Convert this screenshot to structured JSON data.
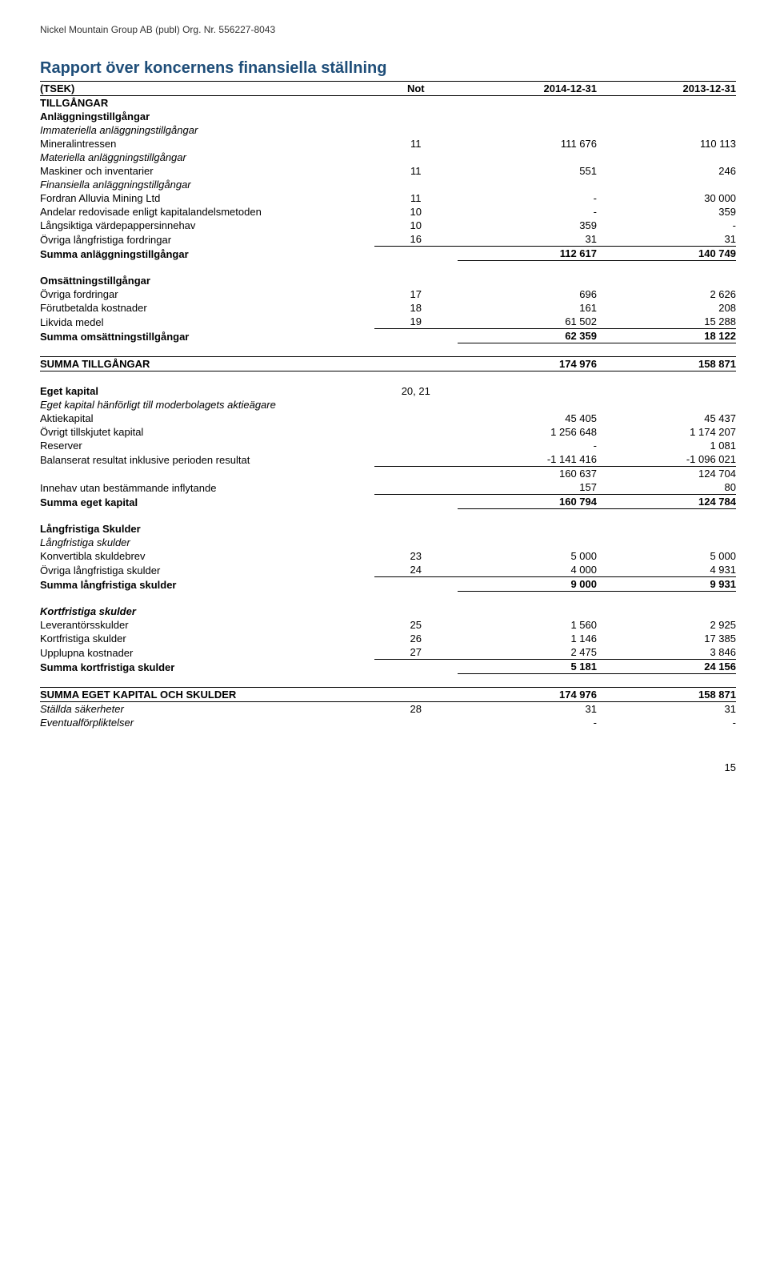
{
  "header": "Nickel Mountain Group AB (publ) Org. Nr. 556227-8043",
  "title": "Rapport över koncernens finansiella ställning",
  "columns": {
    "tsek": "(TSEK)",
    "not": "Not",
    "c1": "2014-12-31",
    "c2": "2013-12-31"
  },
  "sections": {
    "tillgangar_head": "TILLGÅNGAR",
    "anlaggning_head": "Anläggningstillgångar",
    "immateriella_head": "Immateriella anläggningstillgångar",
    "rows1": [
      {
        "label": "Mineralintressen",
        "not": "11",
        "v1": "111 676",
        "v2": "110 113"
      }
    ],
    "materiella_head": "Materiella anläggningstillgångar",
    "rows2": [
      {
        "label": "Maskiner och inventarier",
        "not": "11",
        "v1": "551",
        "v2": "246"
      }
    ],
    "finansiella_head": "Finansiella anläggningstillgångar",
    "rows3": [
      {
        "label": "Fordran Alluvia Mining Ltd",
        "not": "11",
        "v1": "-",
        "v2": "30 000"
      },
      {
        "label": "Andelar redovisade enligt kapitalandelsmetoden",
        "not": "10",
        "v1": "-",
        "v2": "359"
      },
      {
        "label": "Långsiktiga värdepappersinnehav",
        "not": "10",
        "v1": "359",
        "v2": "-"
      },
      {
        "label": "Övriga långfristiga fordringar",
        "not": "16",
        "v1": "31",
        "v2": "31"
      }
    ],
    "sum_anlaggning": {
      "label": "Summa anläggningstillgångar",
      "v1": "112 617",
      "v2": "140 749"
    },
    "omsattning_head": "Omsättningstillgångar",
    "rows4": [
      {
        "label": "Övriga fordringar",
        "not": "17",
        "v1": "696",
        "v2": "2 626"
      },
      {
        "label": "Förutbetalda kostnader",
        "not": "18",
        "v1": "161",
        "v2": "208"
      },
      {
        "label": "Likvida medel",
        "not": "19",
        "v1": "61 502",
        "v2": "15 288"
      }
    ],
    "sum_omsattning": {
      "label": "Summa omsättningstillgångar",
      "v1": "62 359",
      "v2": "18 122"
    },
    "sum_tillgangar": {
      "label": "SUMMA TILLGÅNGAR",
      "v1": "174 976",
      "v2": "158 871"
    },
    "eget_kapital_head": {
      "label": "Eget kapital",
      "not": "20, 21"
    },
    "eget_hanforligt": "Eget kapital hänförligt till moderbolagets aktieägare",
    "rows5": [
      {
        "label": "Aktiekapital",
        "v1": "45 405",
        "v2": "45 437"
      },
      {
        "label": "Övrigt tillskjutet kapital",
        "v1": "1 256 648",
        "v2": "1 174 207"
      },
      {
        "label": "Reserver",
        "v1": "-",
        "v2": "1 081"
      },
      {
        "label": "Balanserat resultat inklusive perioden resultat",
        "v1": "-1 141 416",
        "v2": "-1 096 021"
      }
    ],
    "subtotal5": {
      "v1": "160 637",
      "v2": "124 704"
    },
    "innehav": {
      "label": "Innehav utan bestämmande inflytande",
      "v1": "157",
      "v2": "80"
    },
    "sum_eget": {
      "label": "Summa eget kapital",
      "v1": "160 794",
      "v2": "124 784"
    },
    "langfristiga_head": "Långfristiga Skulder",
    "langfristiga_sub": "Långfristiga skulder",
    "rows6": [
      {
        "label": "Konvertibla skuldebrev",
        "not": "23",
        "v1": "5 000",
        "v2": "5 000"
      },
      {
        "label": "Övriga långfristiga skulder",
        "not": "24",
        "v1": "4 000",
        "v2": "4 931"
      }
    ],
    "sum_lang": {
      "label": "Summa långfristiga skulder",
      "v1": "9 000",
      "v2": "9 931"
    },
    "kortfristiga_head": "Kortfristiga skulder",
    "rows7": [
      {
        "label": "Leverantörsskulder",
        "not": "25",
        "v1": "1 560",
        "v2": "2 925"
      },
      {
        "label": "Kortfristiga skulder",
        "not": "26",
        "v1": "1 146",
        "v2": "17 385"
      },
      {
        "label": "Upplupna kostnader",
        "not": "27",
        "v1": "2 475",
        "v2": "3 846"
      }
    ],
    "sum_kort": {
      "label": "Summa kortfristiga skulder",
      "v1": "5 181",
      "v2": "24 156"
    },
    "sum_total": {
      "label": "SUMMA EGET KAPITAL OCH SKULDER",
      "v1": "174 976",
      "v2": "158 871"
    },
    "stallda": {
      "label": "Ställda säkerheter",
      "not": "28",
      "v1": "31",
      "v2": "31"
    },
    "eventual": {
      "label": "Eventualförpliktelser",
      "v1": "-",
      "v2": "-"
    }
  },
  "page_number": "15"
}
